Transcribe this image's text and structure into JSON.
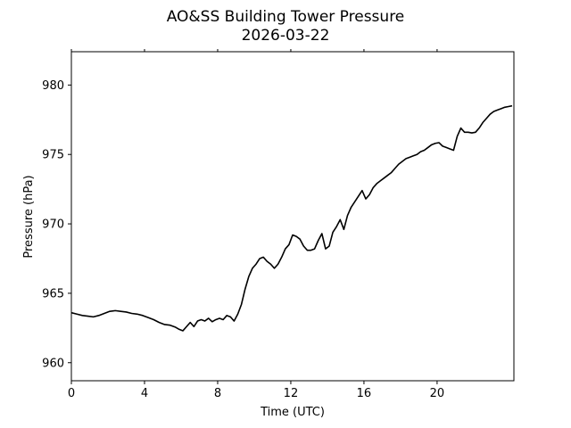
{
  "chart_data": {
    "type": "line",
    "title": "AO&SS Building Tower Pressure",
    "subtitle": "2026-03-22",
    "xlabel": "Time (UTC)",
    "ylabel": "Pressure (hPa)",
    "xlim": [
      0,
      24.2
    ],
    "ylim": [
      958.7,
      982.4
    ],
    "xticks": [
      0,
      4,
      8,
      12,
      16,
      20
    ],
    "xtick_labels": [
      "0",
      "4",
      "8",
      "12",
      "16",
      "20"
    ],
    "yticks": [
      960,
      965,
      970,
      975,
      980
    ],
    "ytick_labels": [
      "960",
      "965",
      "970",
      "975",
      "980"
    ],
    "grid": false,
    "legend": false,
    "series": [
      {
        "color": "#000000",
        "x": [
          0.0,
          0.3,
          0.6,
          0.9,
          1.2,
          1.5,
          1.8,
          2.1,
          2.4,
          2.7,
          3.0,
          3.3,
          3.6,
          3.9,
          4.2,
          4.5,
          4.8,
          5.1,
          5.4,
          5.7,
          5.9,
          6.1,
          6.3,
          6.5,
          6.7,
          6.9,
          7.1,
          7.3,
          7.5,
          7.7,
          7.9,
          8.1,
          8.3,
          8.5,
          8.7,
          8.9,
          9.1,
          9.3,
          9.5,
          9.7,
          9.9,
          10.1,
          10.3,
          10.5,
          10.7,
          10.9,
          11.1,
          11.3,
          11.5,
          11.7,
          11.9,
          12.1,
          12.3,
          12.5,
          12.7,
          12.9,
          13.1,
          13.3,
          13.5,
          13.7,
          13.9,
          14.1,
          14.3,
          14.5,
          14.7,
          14.9,
          15.1,
          15.3,
          15.5,
          15.7,
          15.9,
          16.1,
          16.3,
          16.5,
          16.7,
          16.9,
          17.1,
          17.3,
          17.5,
          17.7,
          17.9,
          18.1,
          18.3,
          18.5,
          18.7,
          18.9,
          19.1,
          19.3,
          19.5,
          19.7,
          19.9,
          20.1,
          20.3,
          20.5,
          20.7,
          20.9,
          21.1,
          21.3,
          21.5,
          21.7,
          21.9,
          22.1,
          22.3,
          22.5,
          22.7,
          22.9,
          23.1,
          23.3,
          23.5,
          23.7,
          23.9,
          24.1
        ],
        "y": [
          963.6,
          963.5,
          963.4,
          963.35,
          963.3,
          963.4,
          963.55,
          963.7,
          963.75,
          963.7,
          963.65,
          963.55,
          963.5,
          963.4,
          963.25,
          963.1,
          962.9,
          962.75,
          962.7,
          962.55,
          962.4,
          962.3,
          962.6,
          962.9,
          962.6,
          963.0,
          963.1,
          963.0,
          963.2,
          962.95,
          963.1,
          963.2,
          963.1,
          963.4,
          963.3,
          963.0,
          963.5,
          964.2,
          965.3,
          966.2,
          966.8,
          967.1,
          967.5,
          967.6,
          967.3,
          967.1,
          966.8,
          967.1,
          967.6,
          968.2,
          968.5,
          969.2,
          969.1,
          968.9,
          968.4,
          968.1,
          968.1,
          968.2,
          968.8,
          969.3,
          968.2,
          968.4,
          969.4,
          969.8,
          970.3,
          969.6,
          970.6,
          971.2,
          971.6,
          972.0,
          972.4,
          971.8,
          972.1,
          972.6,
          972.9,
          973.1,
          973.3,
          973.5,
          973.7,
          974.0,
          974.3,
          974.5,
          974.7,
          974.8,
          974.9,
          975.0,
          975.2,
          975.3,
          975.5,
          975.7,
          975.8,
          975.85,
          975.6,
          975.5,
          975.4,
          975.3,
          976.3,
          976.9,
          976.6,
          976.6,
          976.55,
          976.6,
          976.9,
          977.3,
          977.6,
          977.9,
          978.1,
          978.2,
          978.3,
          978.4,
          978.45,
          978.5
        ]
      }
    ]
  }
}
